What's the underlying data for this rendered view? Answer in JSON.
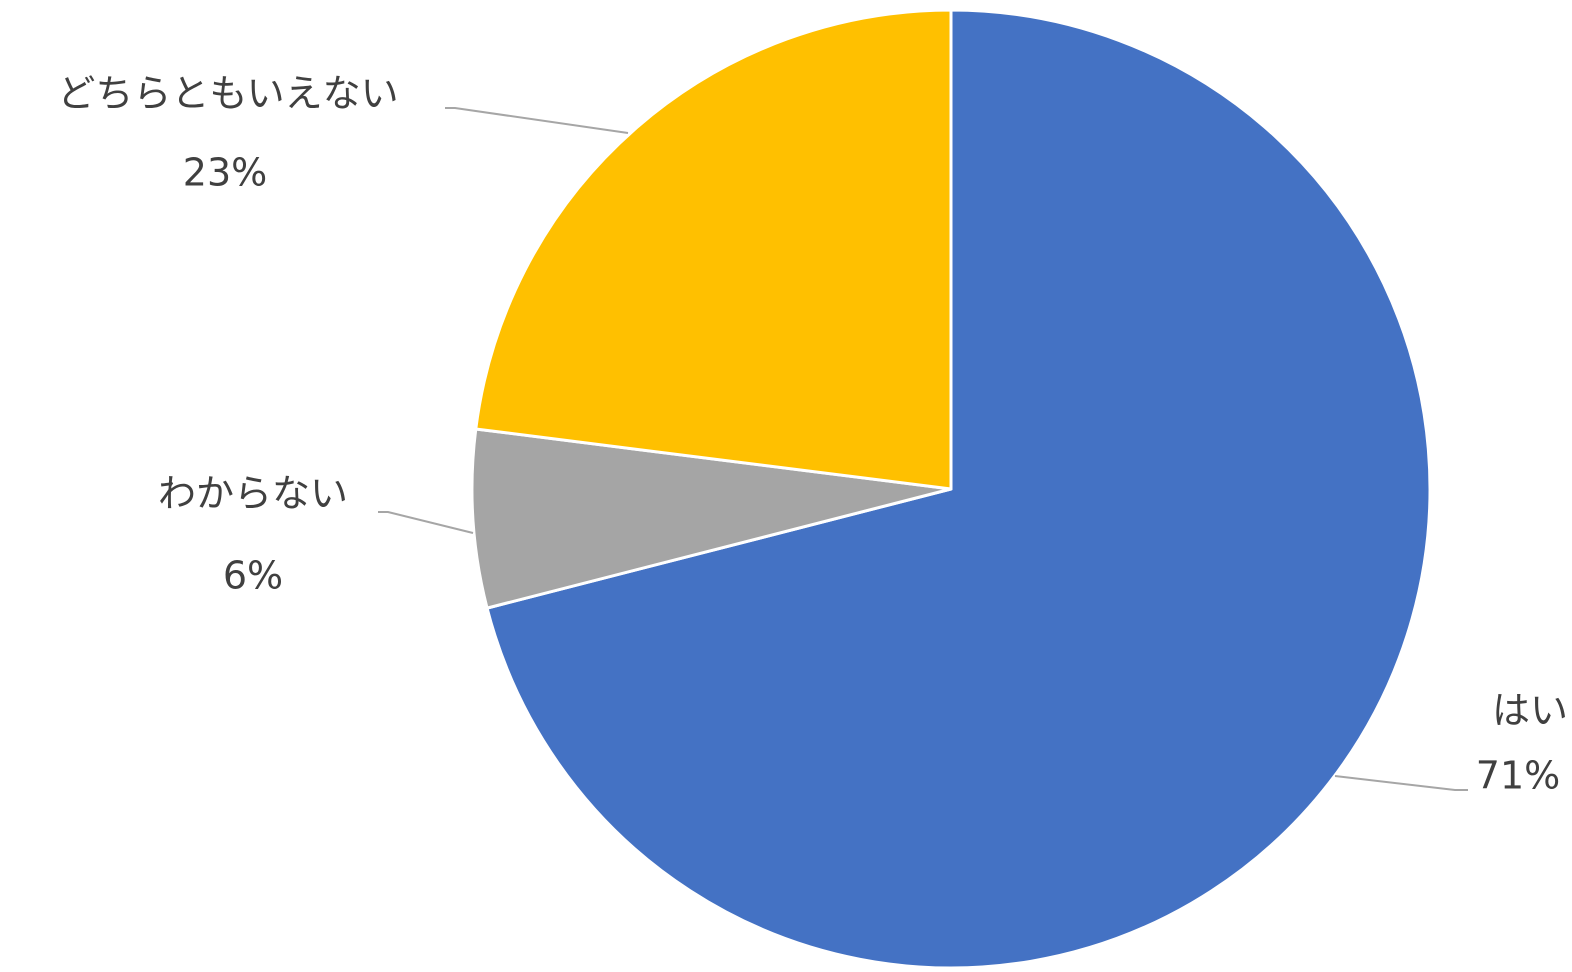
{
  "chart_data": {
    "type": "pie",
    "start_angle_deg": 0,
    "direction": "clockwise",
    "legend": "none",
    "slices": [
      {
        "label": "はい",
        "value": 71,
        "percent_label": "71%",
        "color": "#4472C4"
      },
      {
        "label": "わからない",
        "value": 6,
        "percent_label": "6%",
        "color": "#A5A5A5"
      },
      {
        "label": "どちらともいえない",
        "value": 23,
        "percent_label": "23%",
        "color": "#FFC000"
      }
    ],
    "slice_border_color": "#FFFFFF",
    "leader_line_color": "#A6A6A6",
    "label_color": "#404040"
  }
}
